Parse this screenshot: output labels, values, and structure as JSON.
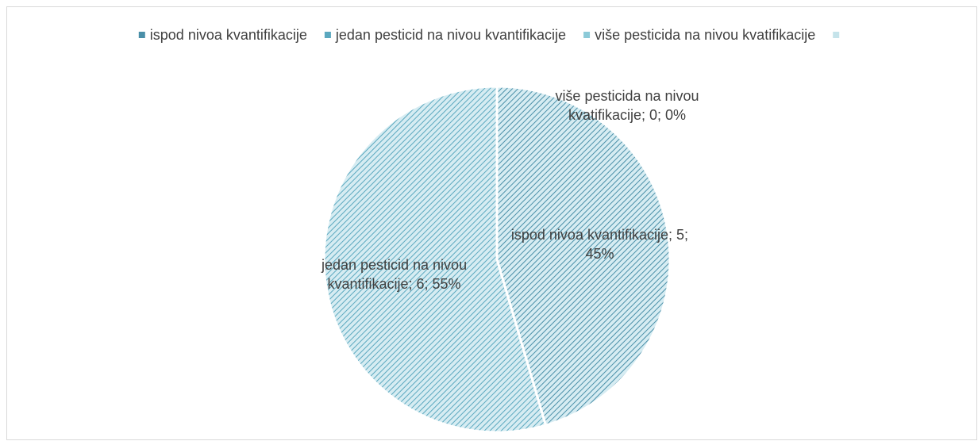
{
  "chart_data": {
    "type": "pie",
    "categories": [
      "ispod nivoa kvantifikacije",
      "jedan pesticid na nivou kvantifikacije",
      "više pesticida na nivou kvatifikacije"
    ],
    "values": [
      5,
      6,
      0
    ],
    "value_labels": [
      "ispod nivoa kvantifikacije; 5; 45%",
      "jedan pesticid na nivou kvantifikacije; 6; 55%",
      "više pesticida na nivou kvatifikacije; 0; 0%"
    ],
    "colors": [
      "#4a8fa8",
      "#5ba8bf",
      "#8ccad8"
    ],
    "legend": "top"
  }
}
